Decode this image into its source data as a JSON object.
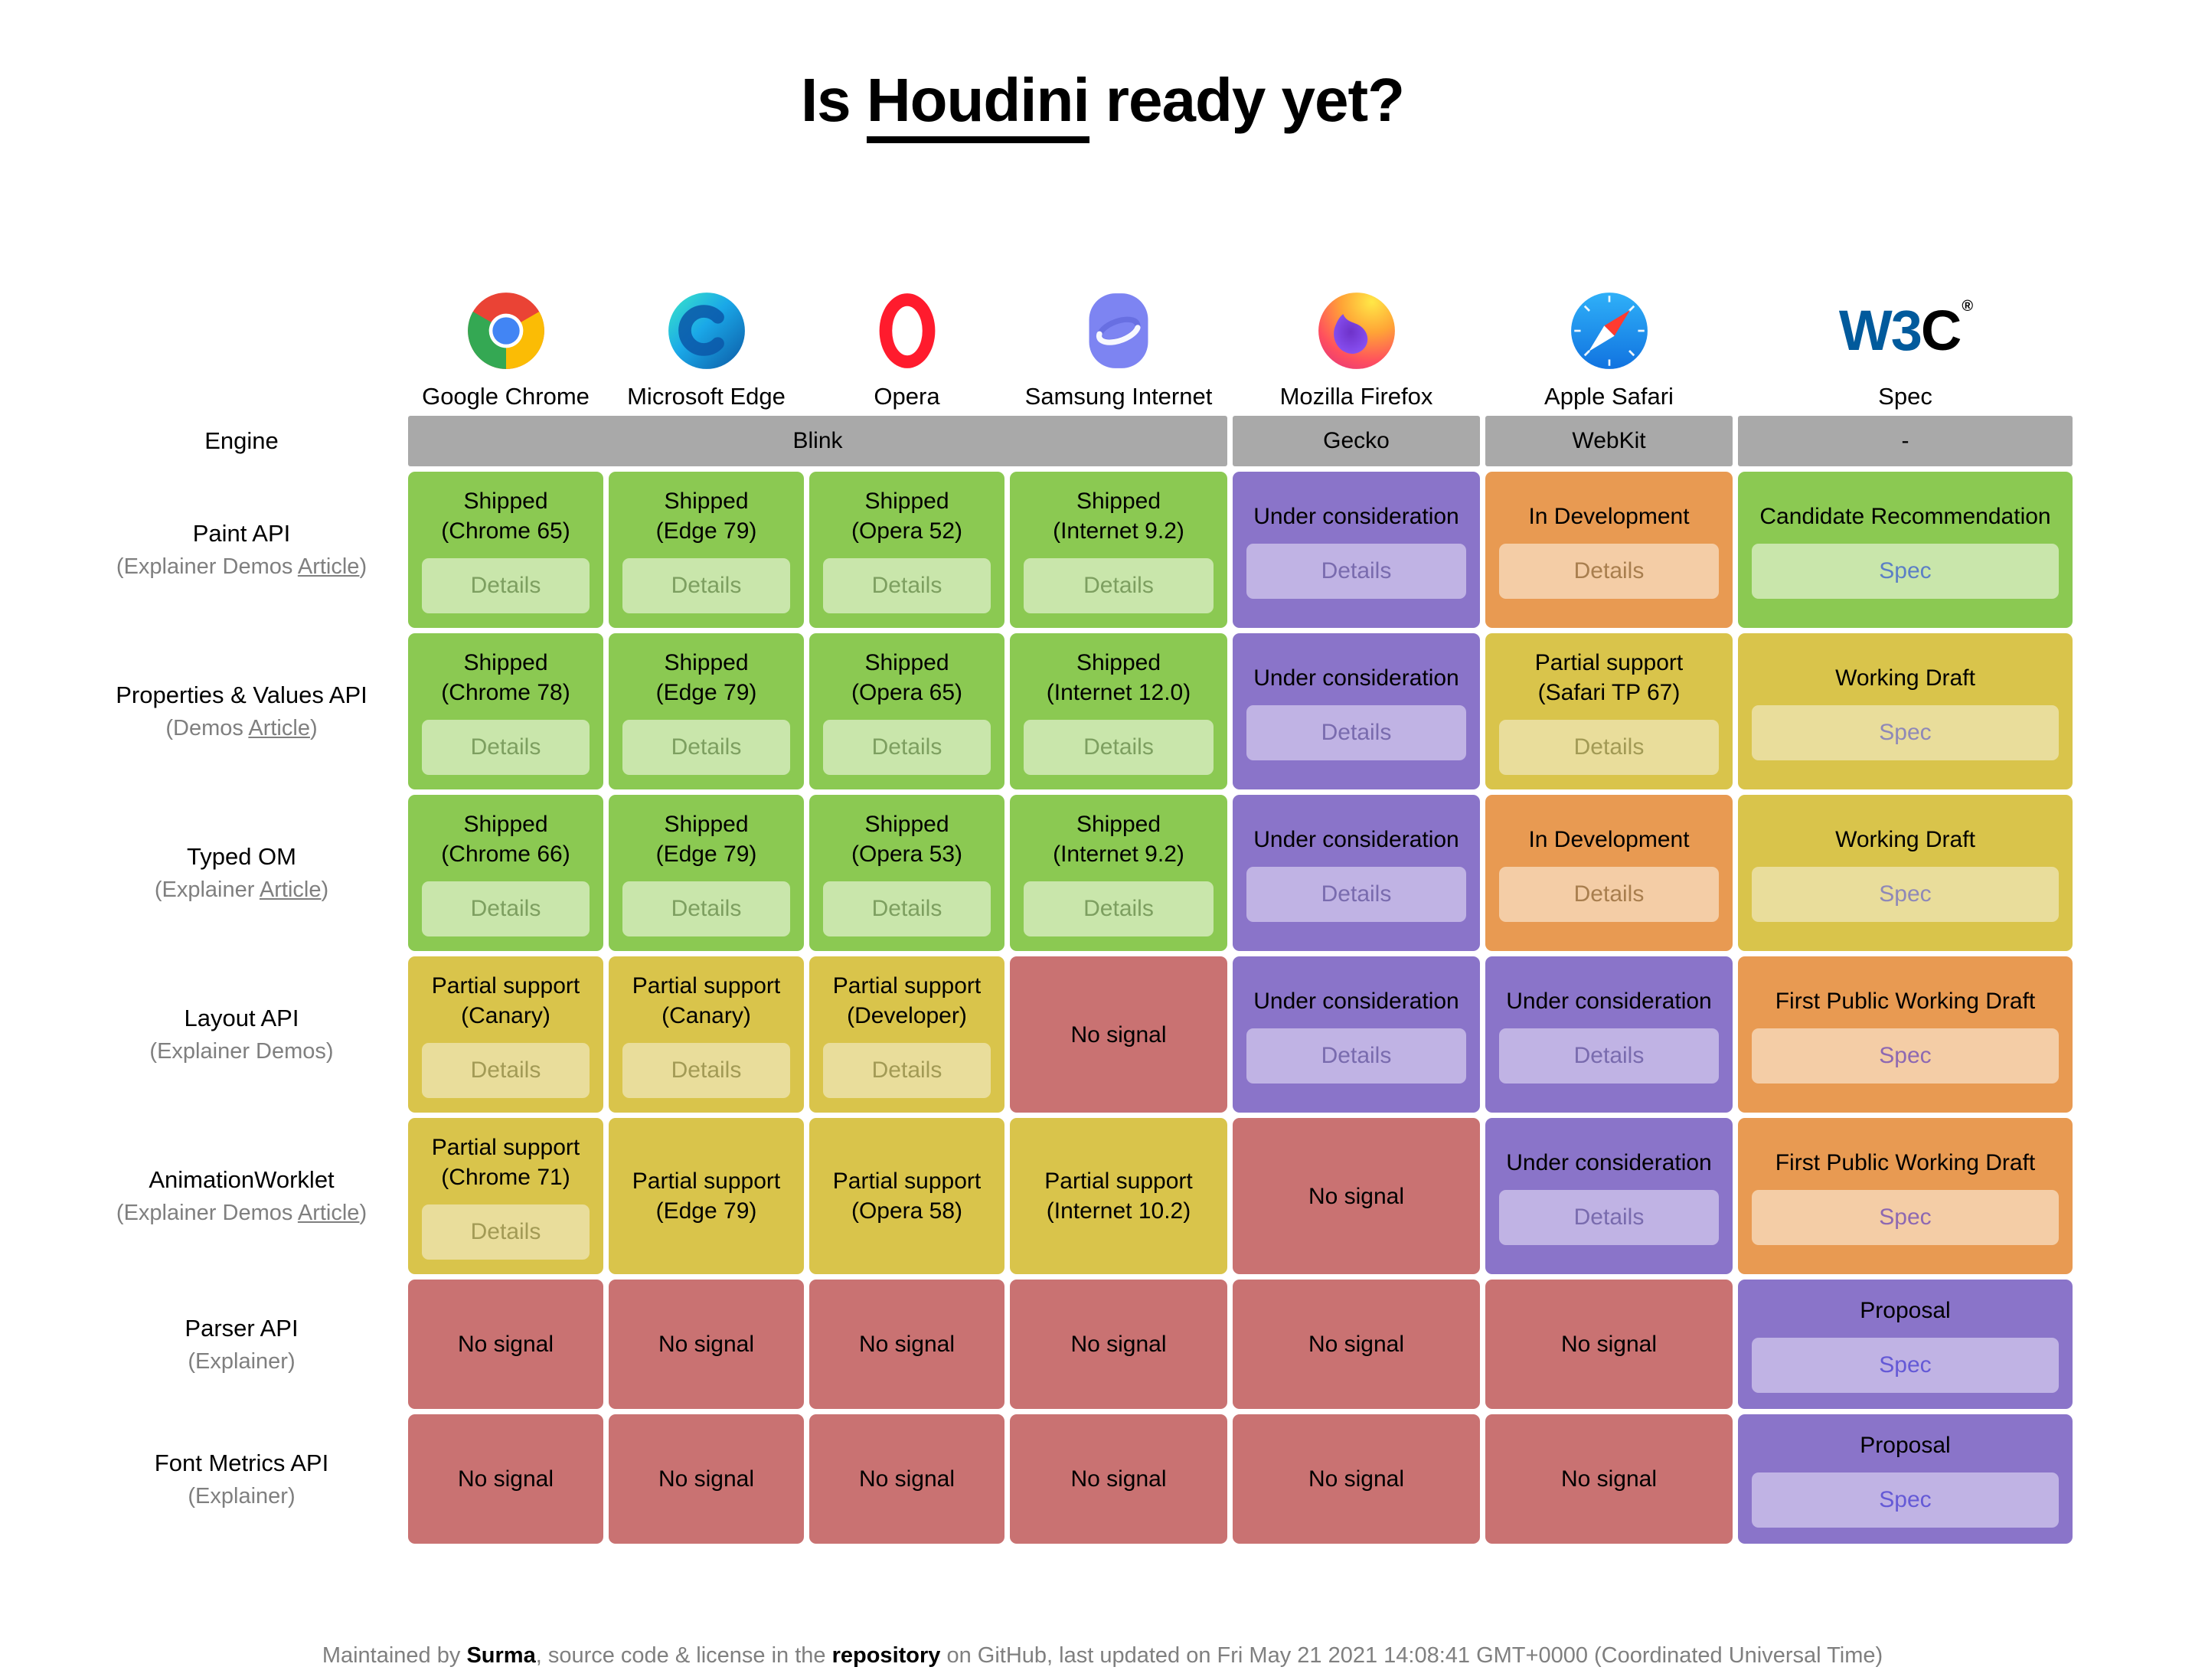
{
  "title": {
    "prefix": "Is ",
    "link": "Houdini",
    "middle": " ready yet",
    "qmark": "?"
  },
  "columns": [
    {
      "label": "Google Chrome",
      "icon": "chrome-icon"
    },
    {
      "label": "Microsoft Edge",
      "icon": "edge-icon"
    },
    {
      "label": "Opera",
      "icon": "opera-icon"
    },
    {
      "label": "Samsung Internet",
      "icon": "samsung-internet-icon"
    },
    {
      "label": "Mozilla Firefox",
      "icon": "firefox-icon"
    },
    {
      "label": "Apple Safari",
      "icon": "safari-icon"
    },
    {
      "label": "Spec",
      "icon": "w3c-icon"
    }
  ],
  "engine_row": {
    "label": "Engine",
    "groups": [
      {
        "name": "Blink",
        "span": 4
      },
      {
        "name": "Gecko",
        "span": 1
      },
      {
        "name": "WebKit",
        "span": 1
      },
      {
        "name": "-",
        "span": 1
      }
    ]
  },
  "rows": [
    {
      "api": "Paint API",
      "sub": {
        "open": "(",
        "close": ")",
        "parts": [
          {
            "text": "Explainer",
            "underlined": false
          },
          {
            "text": "Demos",
            "underlined": false
          },
          {
            "text": "Article",
            "underlined": true
          }
        ]
      },
      "cells": [
        {
          "type": "shipped",
          "status": "Shipped",
          "detail": "(Chrome 65)",
          "button": "Details"
        },
        {
          "type": "shipped",
          "status": "Shipped",
          "detail": "(Edge 79)",
          "button": "Details"
        },
        {
          "type": "shipped",
          "status": "Shipped",
          "detail": "(Opera 52)",
          "button": "Details"
        },
        {
          "type": "shipped",
          "status": "Shipped",
          "detail": "(Internet 9.2)",
          "button": "Details"
        },
        {
          "type": "under",
          "status": "Under consideration",
          "button": "Details"
        },
        {
          "type": "indev",
          "status": "In Development",
          "button": "Details"
        },
        {
          "type": "cr",
          "status": "Candidate Recommendation",
          "button": "Spec"
        }
      ]
    },
    {
      "api": "Properties & Values API",
      "sub": {
        "open": "(",
        "close": ")",
        "parts": [
          {
            "text": "Demos",
            "underlined": false
          },
          {
            "text": "Article",
            "underlined": true
          }
        ]
      },
      "cells": [
        {
          "type": "shipped",
          "status": "Shipped",
          "detail": "(Chrome 78)",
          "button": "Details"
        },
        {
          "type": "shipped",
          "status": "Shipped",
          "detail": "(Edge 79)",
          "button": "Details"
        },
        {
          "type": "shipped",
          "status": "Shipped",
          "detail": "(Opera 65)",
          "button": "Details"
        },
        {
          "type": "shipped",
          "status": "Shipped",
          "detail": "(Internet 12.0)",
          "button": "Details"
        },
        {
          "type": "under",
          "status": "Under consideration",
          "button": "Details"
        },
        {
          "type": "partial",
          "status": "Partial support",
          "detail": "(Safari TP 67)",
          "button": "Details"
        },
        {
          "type": "wd",
          "status": "Working Draft",
          "button": "Spec"
        }
      ]
    },
    {
      "api": "Typed OM",
      "sub": {
        "open": "(",
        "close": ")",
        "parts": [
          {
            "text": "Explainer",
            "underlined": false
          },
          {
            "text": "Article",
            "underlined": true
          }
        ]
      },
      "cells": [
        {
          "type": "shipped",
          "status": "Shipped",
          "detail": "(Chrome 66)",
          "button": "Details"
        },
        {
          "type": "shipped",
          "status": "Shipped",
          "detail": "(Edge 79)",
          "button": "Details"
        },
        {
          "type": "shipped",
          "status": "Shipped",
          "detail": "(Opera 53)",
          "button": "Details"
        },
        {
          "type": "shipped",
          "status": "Shipped",
          "detail": "(Internet 9.2)",
          "button": "Details"
        },
        {
          "type": "under",
          "status": "Under consideration",
          "button": "Details"
        },
        {
          "type": "indev",
          "status": "In Development",
          "button": "Details"
        },
        {
          "type": "wd",
          "status": "Working Draft",
          "button": "Spec"
        }
      ]
    },
    {
      "api": "Layout API",
      "sub": {
        "open": "(",
        "close": ")",
        "parts": [
          {
            "text": "Explainer",
            "underlined": false
          },
          {
            "text": "Demos",
            "underlined": false
          }
        ]
      },
      "cells": [
        {
          "type": "partial",
          "status": "Partial support",
          "detail": "(Canary)",
          "button": "Details"
        },
        {
          "type": "partial",
          "status": "Partial support",
          "detail": "(Canary)",
          "button": "Details"
        },
        {
          "type": "partial",
          "status": "Partial support",
          "detail": "(Developer)",
          "button": "Details"
        },
        {
          "type": "nosignal",
          "status": "No signal"
        },
        {
          "type": "under",
          "status": "Under consideration",
          "button": "Details"
        },
        {
          "type": "under",
          "status": "Under consideration",
          "button": "Details"
        },
        {
          "type": "fpwd",
          "status": "First Public Working Draft",
          "button": "Spec"
        }
      ]
    },
    {
      "api": "AnimationWorklet",
      "sub": {
        "open": "(",
        "close": ")",
        "parts": [
          {
            "text": "Explainer",
            "underlined": false
          },
          {
            "text": "Demos",
            "underlined": false
          },
          {
            "text": "Article",
            "underlined": true
          }
        ]
      },
      "cells": [
        {
          "type": "partial",
          "status": "Partial support",
          "detail": "(Chrome 71)",
          "button": "Details"
        },
        {
          "type": "partial",
          "status": "Partial support",
          "detail": "(Edge 79)"
        },
        {
          "type": "partial",
          "status": "Partial support",
          "detail": "(Opera 58)"
        },
        {
          "type": "partial",
          "status": "Partial support",
          "detail": "(Internet 10.2)"
        },
        {
          "type": "nosignal",
          "status": "No signal"
        },
        {
          "type": "under",
          "status": "Under consideration",
          "button": "Details"
        },
        {
          "type": "fpwd",
          "status": "First Public Working Draft",
          "button": "Spec"
        }
      ]
    },
    {
      "api": "Parser API",
      "sub": {
        "open": "(",
        "close": ")",
        "parts": [
          {
            "text": "Explainer",
            "underlined": false
          }
        ]
      },
      "cells": [
        {
          "type": "nosignal",
          "status": "No signal"
        },
        {
          "type": "nosignal",
          "status": "No signal"
        },
        {
          "type": "nosignal",
          "status": "No signal"
        },
        {
          "type": "nosignal",
          "status": "No signal"
        },
        {
          "type": "nosignal",
          "status": "No signal"
        },
        {
          "type": "nosignal",
          "status": "No signal"
        },
        {
          "type": "proposal",
          "status": "Proposal",
          "button": "Spec"
        }
      ]
    },
    {
      "api": "Font Metrics API",
      "sub": {
        "open": "(",
        "close": ")",
        "parts": [
          {
            "text": "Explainer",
            "underlined": false
          }
        ]
      },
      "cells": [
        {
          "type": "nosignal",
          "status": "No signal"
        },
        {
          "type": "nosignal",
          "status": "No signal"
        },
        {
          "type": "nosignal",
          "status": "No signal"
        },
        {
          "type": "nosignal",
          "status": "No signal"
        },
        {
          "type": "nosignal",
          "status": "No signal"
        },
        {
          "type": "nosignal",
          "status": "No signal"
        },
        {
          "type": "proposal",
          "status": "Proposal",
          "button": "Spec"
        }
      ]
    }
  ],
  "footer": {
    "parts": [
      {
        "text": "Maintained by ",
        "link": false
      },
      {
        "text": "Surma",
        "link": true
      },
      {
        "text": ", source code & license in the ",
        "link": false
      },
      {
        "text": "repository",
        "link": true
      },
      {
        "text": " on GitHub, last updated on Fri May 21 2021 14:08:41 GMT+0000 (Coordinated Universal Time)",
        "link": false
      }
    ]
  },
  "colors": {
    "shipped_green": "#8bc952",
    "partial_yellow": "#d9c44b",
    "under_consideration_purple": "#8a74c9",
    "in_development_orange": "#e89a52",
    "no_signal_red": "#c97272",
    "engine_gray": "#a9a9a9",
    "w3c_blue": "#015a9c"
  }
}
